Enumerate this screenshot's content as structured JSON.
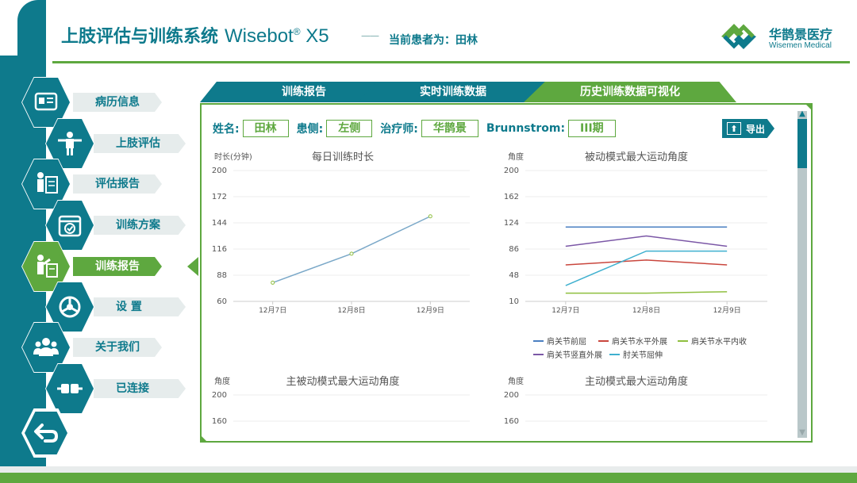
{
  "header": {
    "title": "上肢评估与训练系统",
    "model_name": "Wisebot",
    "model_reg": "®",
    "model_suffix": "X5",
    "dash": "——",
    "current_patient": "当前患者为：田林",
    "logo_cn": "华鹊景医疗",
    "logo_en": "Wisemen Medical"
  },
  "sidebar": {
    "items": [
      {
        "label": "病历信息",
        "icon": "medical-record-icon",
        "active": false
      },
      {
        "label": "上肢评估",
        "icon": "arm-assessment-icon",
        "active": false
      },
      {
        "label": "评估报告",
        "icon": "assessment-report-icon",
        "active": false
      },
      {
        "label": "训练方案",
        "icon": "training-plan-icon",
        "active": false
      },
      {
        "label": "训练报告",
        "icon": "training-report-icon",
        "active": true
      },
      {
        "label": "设  置",
        "icon": "settings-icon",
        "active": false
      },
      {
        "label": "关于我们",
        "icon": "about-us-icon",
        "active": false
      },
      {
        "label": "已连接",
        "icon": "connection-icon",
        "active": false
      }
    ],
    "back_icon": "back-icon"
  },
  "tabs": [
    {
      "label": "训练报告",
      "active": false
    },
    {
      "label": "实时训练数据",
      "active": false
    },
    {
      "label": "历史训练数据可视化",
      "active": true
    }
  ],
  "patient_info": {
    "name_label": "姓名:",
    "name_value": "田林",
    "side_label": "患侧:",
    "side_value": "左侧",
    "therapist_label": "治疗师:",
    "therapist_value": "华鹊景",
    "brunnstrom_label": "Brunnstrom:",
    "brunnstrom_value": "III期"
  },
  "export_label": "导出",
  "colors": {
    "teal": "#0e7a8c",
    "green": "#5ea83f"
  },
  "chart_data": [
    {
      "type": "line",
      "title": "每日训练时长",
      "ylabel": "时长(分钟)",
      "categories": [
        "12月7日",
        "12月8日",
        "12月9日"
      ],
      "ylim": [
        60,
        200
      ],
      "yticks": [
        60,
        88,
        116,
        144,
        172,
        200
      ],
      "series": [
        {
          "values": [
            80,
            111,
            151
          ],
          "color": "#7aa8c8"
        }
      ]
    },
    {
      "type": "line",
      "title": "被动模式最大运动角度",
      "ylabel": "角度",
      "categories": [
        "12月7日",
        "12月8日",
        "12月9日"
      ],
      "ylim": [
        10,
        200
      ],
      "yticks": [
        10,
        48,
        86,
        124,
        162,
        200
      ],
      "series": [
        {
          "name": "肩关节前屈",
          "values": [
            118,
            118,
            118
          ],
          "color": "#4a7fc1"
        },
        {
          "name": "肩关节水平外展",
          "values": [
            63,
            70,
            63
          ],
          "color": "#c9463d"
        },
        {
          "name": "肩关节水平内收",
          "values": [
            22,
            22,
            24
          ],
          "color": "#8fbf3f"
        },
        {
          "name": "肩关节竖直外展",
          "values": [
            90,
            105,
            90
          ],
          "color": "#7b57a6"
        },
        {
          "name": "肘关节屈伸",
          "values": [
            33,
            83,
            83
          ],
          "color": "#3fb0cf"
        }
      ]
    },
    {
      "type": "line",
      "title": "主被动模式最大运动角度",
      "ylabel": "角度",
      "yticks_visible": [
        200,
        160
      ],
      "series": []
    },
    {
      "type": "line",
      "title": "主动模式最大运动角度",
      "ylabel": "角度",
      "yticks_visible": [
        200,
        160
      ],
      "series": []
    }
  ]
}
